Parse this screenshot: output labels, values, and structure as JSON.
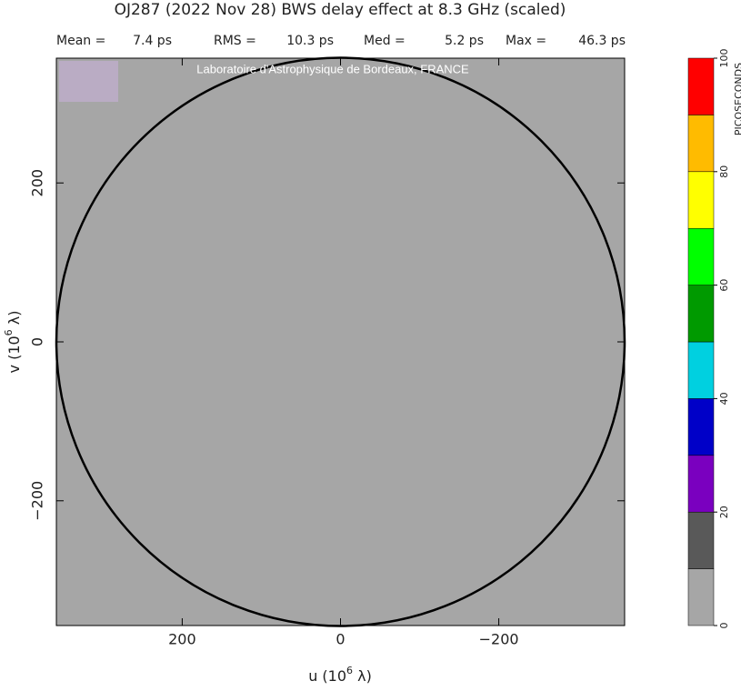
{
  "chart_data": {
    "type": "contour",
    "title": "OJ287  (2022 Nov 28)   BWS delay effect at  8.3 GHz (scaled)",
    "stats": [
      {
        "name": "Mean =",
        "text": "7.4 ps"
      },
      {
        "name": "RMS =",
        "text": "10.3 ps"
      },
      {
        "name": "Med =",
        "text": "5.2 ps"
      },
      {
        "name": "Max =",
        "text": "46.3 ps"
      }
    ],
    "watermark": "Laboratoire d'Astrophysique de Bordeaux, FRANCE",
    "xlabel": [
      "u  (10",
      "6",
      " λ)"
    ],
    "ylabel": [
      "v  (10",
      "6",
      " λ)"
    ],
    "xlim": [
      359,
      -359
    ],
    "xticks": [
      200,
      0,
      {
        "value": -200,
        "label": "−200"
      }
    ],
    "ylim": [
      -357,
      357
    ],
    "yticks": [
      {
        "value": -200,
        "label": "−200"
      },
      0,
      200
    ],
    "colorbar": {
      "label": "PICOSECONDS",
      "levels": [
        0,
        10,
        20,
        30,
        40,
        50,
        60,
        70,
        80,
        90,
        100
      ],
      "colors": [
        "#a6a6a6",
        "#595959",
        "#7a00bf",
        "#0000c8",
        "#00d0e0",
        "#009a00",
        "#00ff00",
        "#ffff00",
        "#ffbb00",
        "#ff0000"
      ],
      "ticks": [
        0,
        20,
        40,
        60,
        80,
        100
      ]
    }
  }
}
